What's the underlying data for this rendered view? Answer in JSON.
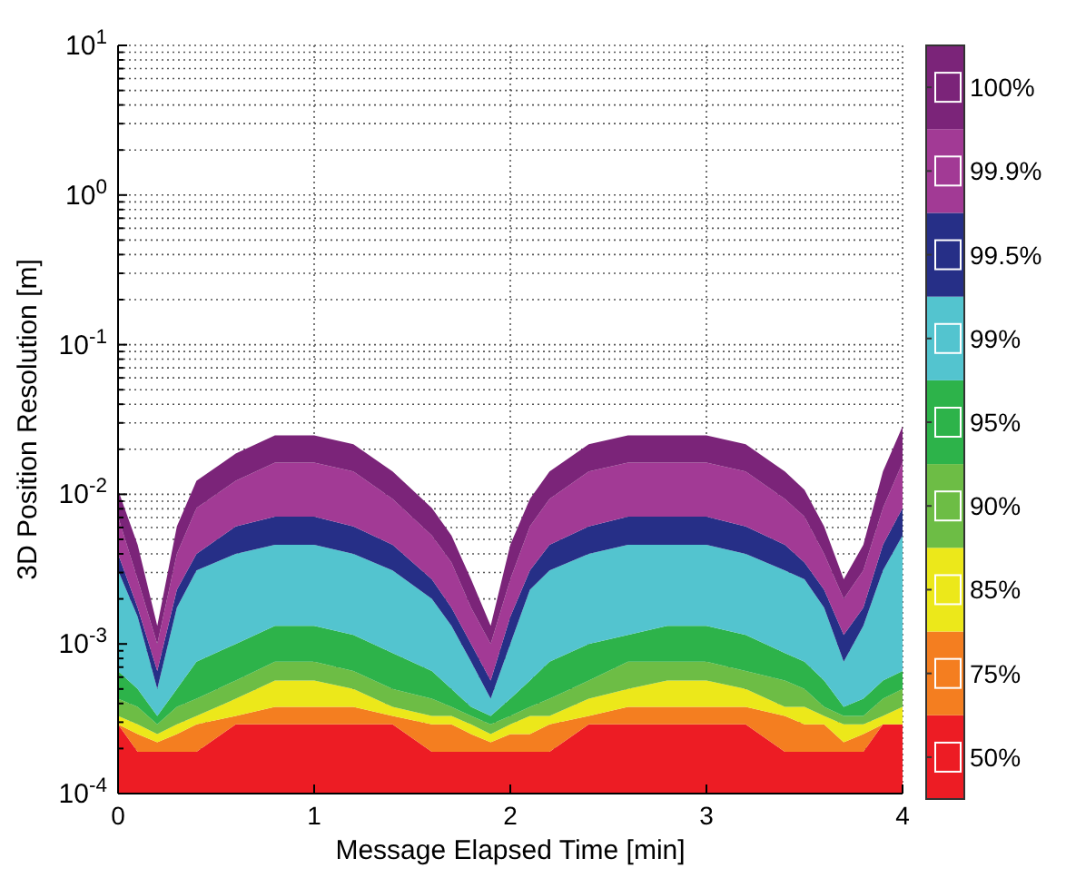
{
  "chart_data": {
    "type": "area",
    "xlabel": "Message Elapsed Time [min]",
    "ylabel": "3D Position Resolution [m]",
    "x": [
      0,
      0.1,
      0.2,
      0.3,
      0.4,
      0.6,
      0.8,
      1.0,
      1.2,
      1.4,
      1.6,
      1.7,
      1.8,
      1.9,
      2.0,
      2.1,
      2.2,
      2.4,
      2.6,
      2.8,
      3.0,
      3.2,
      3.4,
      3.5,
      3.6,
      3.7,
      3.8,
      3.9,
      4.0
    ],
    "xlim": [
      0,
      4
    ],
    "xticks": [
      0,
      1,
      2,
      3,
      4
    ],
    "ylim": [
      0.0001,
      10
    ],
    "log": true,
    "grid": true,
    "legend": "right",
    "yticks": [
      {
        "value": 0.0001,
        "label": "10$^{-4}$"
      },
      {
        "value": 0.0002,
        "label": null
      },
      {
        "value": 0.0003,
        "label": null
      },
      {
        "value": 0.0004,
        "label": null
      },
      {
        "value": 0.0005,
        "label": null
      },
      {
        "value": 0.0006,
        "label": null
      },
      {
        "value": 0.0007,
        "label": null
      },
      {
        "value": 0.0008,
        "label": null
      },
      {
        "value": 0.0009,
        "label": null
      },
      {
        "value": 0.001,
        "label": "10$^{-3}$"
      },
      {
        "value": 0.002,
        "label": null
      },
      {
        "value": 0.003,
        "label": null
      },
      {
        "value": 0.004,
        "label": null
      },
      {
        "value": 0.005,
        "label": null
      },
      {
        "value": 0.006,
        "label": null
      },
      {
        "value": 0.007,
        "label": null
      },
      {
        "value": 0.008,
        "label": null
      },
      {
        "value": 0.009,
        "label": null
      },
      {
        "value": 0.01,
        "label": "10$^{-2}$"
      },
      {
        "value": 0.02,
        "label": null
      },
      {
        "value": 0.03,
        "label": null
      },
      {
        "value": 0.04,
        "label": null
      },
      {
        "value": 0.05,
        "label": null
      },
      {
        "value": 0.06,
        "label": null
      },
      {
        "value": 0.07,
        "label": null
      },
      {
        "value": 0.08,
        "label": null
      },
      {
        "value": 0.09,
        "label": null
      },
      {
        "value": 0.1,
        "label": "10$^{-1}$"
      },
      {
        "value": 0.2,
        "label": null
      },
      {
        "value": 0.3,
        "label": null
      },
      {
        "value": 0.4,
        "label": null
      },
      {
        "value": 0.5,
        "label": null
      },
      {
        "value": 0.6,
        "label": null
      },
      {
        "value": 0.7,
        "label": null
      },
      {
        "value": 0.8,
        "label": null
      },
      {
        "value": 0.9,
        "label": null
      },
      {
        "value": 1,
        "label": "10$^{0}$"
      },
      {
        "value": 2,
        "label": null
      },
      {
        "value": 3,
        "label": null
      },
      {
        "value": 4,
        "label": null
      },
      {
        "value": 5,
        "label": null
      },
      {
        "value": 6,
        "label": null
      },
      {
        "value": 7,
        "label": null
      },
      {
        "value": 8,
        "label": null
      },
      {
        "value": 9,
        "label": null
      },
      {
        "value": 10,
        "label": "10$^{1}$"
      }
    ],
    "series": [
      {
        "name": "50%",
        "color": "#ed1c24",
        "values": [
          0.00029,
          0.00019,
          0.00019,
          0.00019,
          0.00019,
          0.00029,
          0.00029,
          0.00029,
          0.00029,
          0.00029,
          0.00019,
          0.00019,
          0.00019,
          0.00019,
          0.00019,
          0.00019,
          0.00019,
          0.00029,
          0.00029,
          0.00029,
          0.00029,
          0.00029,
          0.00019,
          0.00019,
          0.00019,
          0.00019,
          0.00019,
          0.00029,
          0.00029
        ]
      },
      {
        "name": "75%",
        "color": "#f47e20",
        "values": [
          0.00029,
          0.00025,
          0.00022,
          0.00025,
          0.00029,
          0.00033,
          0.00038,
          0.00038,
          0.00038,
          0.00033,
          0.00029,
          0.00029,
          0.00025,
          0.00022,
          0.00025,
          0.00025,
          0.00029,
          0.00033,
          0.00038,
          0.00038,
          0.00038,
          0.00038,
          0.00033,
          0.00029,
          0.00029,
          0.00022,
          0.00025,
          0.00029,
          0.00029
        ]
      },
      {
        "name": "85%",
        "color": "#ece81a",
        "values": [
          0.00033,
          0.00029,
          0.00025,
          0.00029,
          0.00033,
          0.00043,
          0.00057,
          0.00057,
          0.0005,
          0.00038,
          0.00033,
          0.00033,
          0.00029,
          0.00025,
          0.00029,
          0.00033,
          0.00033,
          0.00043,
          0.0005,
          0.00057,
          0.00057,
          0.0005,
          0.00038,
          0.00038,
          0.00033,
          0.00029,
          0.00029,
          0.00033,
          0.00038
        ]
      },
      {
        "name": "90%",
        "color": "#6dbd45",
        "values": [
          0.00043,
          0.00038,
          0.00029,
          0.00038,
          0.00043,
          0.00057,
          0.00076,
          0.00076,
          0.00066,
          0.0005,
          0.00043,
          0.00038,
          0.00033,
          0.00029,
          0.00033,
          0.00038,
          0.00043,
          0.00057,
          0.00076,
          0.00076,
          0.00076,
          0.00066,
          0.00057,
          0.0005,
          0.00038,
          0.00033,
          0.00033,
          0.00043,
          0.0005
        ]
      },
      {
        "name": "95%",
        "color": "#2db34a",
        "values": [
          0.00066,
          0.0005,
          0.00033,
          0.0005,
          0.00076,
          0.001,
          0.00132,
          0.00132,
          0.00115,
          0.00087,
          0.00066,
          0.0005,
          0.00038,
          0.00033,
          0.00043,
          0.00057,
          0.00076,
          0.001,
          0.00115,
          0.00132,
          0.00132,
          0.00115,
          0.00087,
          0.00076,
          0.00057,
          0.00038,
          0.00043,
          0.00057,
          0.00066
        ]
      },
      {
        "name": "99%",
        "color": "#53c4cf",
        "values": [
          0.0031,
          0.00152,
          0.0005,
          0.00175,
          0.0031,
          0.004,
          0.0046,
          0.0046,
          0.004,
          0.0031,
          0.002,
          0.00132,
          0.00076,
          0.00043,
          0.001,
          0.0023,
          0.0031,
          0.004,
          0.0046,
          0.0046,
          0.0046,
          0.004,
          0.0031,
          0.0027,
          0.00175,
          0.00076,
          0.00132,
          0.0031,
          0.0053
        ]
      },
      {
        "name": "99.5%",
        "color": "#262f87",
        "values": [
          0.004,
          0.00175,
          0.00066,
          0.0023,
          0.004,
          0.0061,
          0.0071,
          0.0071,
          0.0061,
          0.0046,
          0.0027,
          0.00175,
          0.001,
          0.00057,
          0.00152,
          0.0031,
          0.0046,
          0.0061,
          0.0071,
          0.0071,
          0.0071,
          0.0061,
          0.0046,
          0.0035,
          0.0023,
          0.00115,
          0.00175,
          0.0046,
          0.0081
        ]
      },
      {
        "name": "99.9%",
        "color": "#a23a95",
        "values": [
          0.0071,
          0.0027,
          0.001,
          0.004,
          0.0081,
          0.0123,
          0.0163,
          0.0163,
          0.0142,
          0.0093,
          0.0053,
          0.0035,
          0.00175,
          0.001,
          0.0027,
          0.0061,
          0.0093,
          0.0142,
          0.0163,
          0.0163,
          0.0163,
          0.0142,
          0.0093,
          0.0071,
          0.004,
          0.002,
          0.0031,
          0.0081,
          0.0163
        ]
      },
      {
        "name": "100%",
        "color": "#7b2479",
        "values": [
          0.0107,
          0.0046,
          0.00132,
          0.0061,
          0.0123,
          0.0187,
          0.0248,
          0.0248,
          0.0216,
          0.0142,
          0.0081,
          0.0053,
          0.0027,
          0.00132,
          0.0046,
          0.0093,
          0.0142,
          0.0216,
          0.0248,
          0.0248,
          0.0248,
          0.0216,
          0.0142,
          0.0107,
          0.0061,
          0.0027,
          0.0046,
          0.0142,
          0.0285
        ]
      }
    ]
  }
}
